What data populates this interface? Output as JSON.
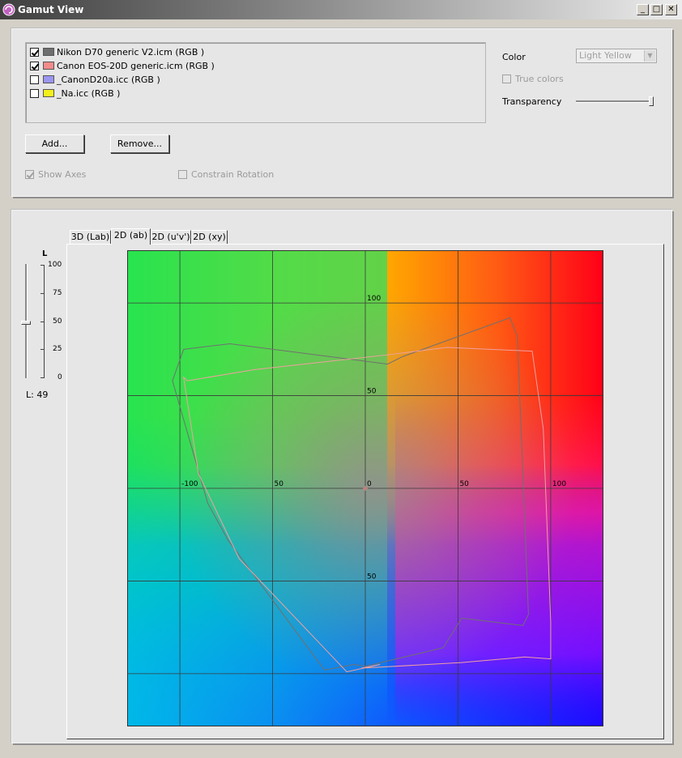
{
  "window": {
    "title": "Gamut View",
    "min_glyph": "_",
    "max_glyph": "□",
    "close_glyph": "✕"
  },
  "profiles": [
    {
      "name": "Nikon D70 generic V2.icm (RGB )",
      "checked": true,
      "color": "#6e6e6e"
    },
    {
      "name": "Canon EOS-20D generic.icm (RGB )",
      "checked": true,
      "color": "#f28b8b"
    },
    {
      "name": "_CanonD20a.icc (RGB )",
      "checked": false,
      "color": "#9b96f0"
    },
    {
      "name": "_Na.icc (RGB )",
      "checked": false,
      "color": "#f4f01c"
    }
  ],
  "buttons": {
    "add": "Add...",
    "remove": "Remove..."
  },
  "options": {
    "show_axes": "Show Axes",
    "show_axes_checked": true,
    "constrain_rotation": "Constrain Rotation",
    "constrain_rotation_checked": false
  },
  "appearance": {
    "color_label": "Color",
    "color_value": "Light Yellow",
    "true_colors_label": "True colors",
    "true_colors_checked": false,
    "transparency_label": "Transparency",
    "transparency_value": 1.0
  },
  "tabs": [
    {
      "label": "3D (Lab)",
      "active": false
    },
    {
      "label": "2D (ab)",
      "active": true
    },
    {
      "label": "2D (u'v')",
      "active": false
    },
    {
      "label": "2D (xy)",
      "active": false
    }
  ],
  "lightness": {
    "axis_label": "L",
    "ticks": [
      "100",
      "75",
      "50",
      "25",
      "0"
    ],
    "value": 49,
    "readout": "L: 49"
  },
  "chart_data": {
    "type": "scatter",
    "x_ticks": [
      "-100",
      "50",
      "0",
      "50",
      "100"
    ],
    "y_ticks": [
      "100",
      "50",
      "50"
    ],
    "xlim": [
      -128,
      128
    ],
    "ylim": [
      -128,
      128
    ],
    "series": [
      {
        "color": "#707070",
        "points": [
          [
            -98,
            75
          ],
          [
            -73,
            78
          ],
          [
            12,
            67
          ],
          [
            20,
            71
          ],
          [
            78,
            92
          ],
          [
            82,
            82
          ],
          [
            88,
            -68
          ],
          [
            85,
            -74
          ],
          [
            52,
            -70
          ],
          [
            42,
            -86
          ],
          [
            0,
            -96
          ],
          [
            -6,
            -95
          ],
          [
            -22,
            -98
          ],
          [
            -74,
            -28
          ],
          [
            -85,
            -8
          ],
          [
            -104,
            58
          ],
          [
            -98,
            75
          ]
        ]
      },
      {
        "color": "#f0a0a0",
        "points": [
          [
            -96,
            58
          ],
          [
            -60,
            64
          ],
          [
            12,
            72
          ],
          [
            44,
            76
          ],
          [
            90,
            74
          ],
          [
            96,
            32
          ],
          [
            100,
            -72
          ],
          [
            100,
            -92
          ],
          [
            86,
            -91
          ],
          [
            52,
            -94
          ],
          [
            -2,
            -97
          ],
          [
            8,
            -95
          ],
          [
            -10,
            -99
          ],
          [
            -68,
            -38
          ],
          [
            -90,
            8
          ],
          [
            -98,
            60
          ],
          [
            -96,
            58
          ]
        ]
      }
    ]
  }
}
